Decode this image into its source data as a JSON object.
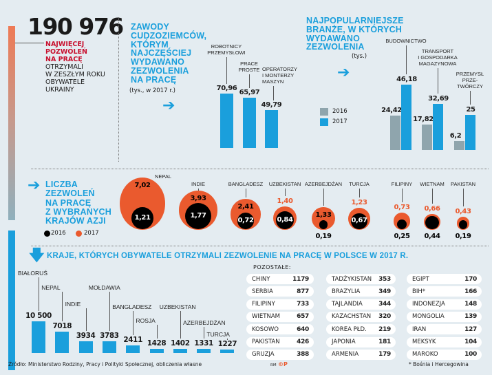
{
  "headline": {
    "number": "190 976",
    "red_text": "NAJWIĘCEJ\nPOZWOLEŃ\nNA PRACĘ",
    "black_text": "OTRZYMALI\nW ZESZŁYM ROKU\nOBYWATELE\nUKRAINY"
  },
  "colors": {
    "blue": "#1a9fdc",
    "orange": "#ea5a2e",
    "gray": "#8fa5ad",
    "red_text": "#c8102e",
    "bg": "#e4ecf1"
  },
  "professions": {
    "title": "ZAWODY\nCUDZOZIEMCÓW,\nKTÓRYM\nNAJCZĘŚCIEJ\nWYDAWANO\nZEZWOLENIA\nNA PRACĘ",
    "unit": "(tys., w 2017 r.)",
    "icon": "arrow-right-icon"
  },
  "industries": {
    "title": "NAJPOPULARNIEJSZE\nBRANŻE, W KTÓRYCH\nWYDAWANO\nZEZWOLENIA",
    "unit": "(tys.)",
    "legend": [
      "2016",
      "2017"
    ],
    "icon": "arrow-right-icon"
  },
  "asia": {
    "title": "LICZBA\nZEZWOLEŃ\nNA PRACĘ\nZ WYBRANYCH\nKRAJÓW AZJI",
    "legend": [
      "2016",
      "2017"
    ],
    "icon": "arrow-right-icon"
  },
  "countries": {
    "title": "KRAJE, KTÓRYCH OBYWATELE OTRZYMALI ZEZWOLENIE NA PRACĘ W POLSCE W 2017 R.",
    "icon": "arrow-down-icon"
  },
  "others": {
    "label": "POZOSTAŁE:",
    "columns": [
      [
        [
          "CHINY",
          "1179"
        ],
        [
          "SERBIA",
          "877"
        ],
        [
          "FILIPINY",
          "733"
        ],
        [
          "WIETNAM",
          "657"
        ],
        [
          "KOSOWO",
          "640"
        ],
        [
          "PAKISTAN",
          "426"
        ],
        [
          "GRUZJA",
          "388"
        ]
      ],
      [
        [
          "TADŻYKISTAN",
          "353"
        ],
        [
          "BRAZYLIA",
          "349"
        ],
        [
          "TAJLANDIA",
          "344"
        ],
        [
          "KAZACHSTAN",
          "320"
        ],
        [
          "KOREA PŁD.",
          "219"
        ],
        [
          "JAPONIA",
          "181"
        ],
        [
          "ARMENIA",
          "179"
        ]
      ],
      [
        [
          "EGIPT",
          "170"
        ],
        [
          "BIH*",
          "166"
        ],
        [
          "INDONEZJA",
          "148"
        ],
        [
          "MONGOLIA",
          "139"
        ],
        [
          "IRAN",
          "127"
        ],
        [
          "MEKSYK",
          "104"
        ],
        [
          "MAROKO",
          "100"
        ]
      ]
    ],
    "footnote": "* Bośnia i Hercegowina"
  },
  "footer": {
    "source": "Źródło: Ministerstwo Rodziny, Pracy i Polityki Społecznej, obliczenia własne",
    "credit": "RM",
    "logo": "©P"
  },
  "chart_data": [
    {
      "type": "bar",
      "title": "ZAWODY CUDZOZIEMCÓW, KTÓRYM NAJCZĘŚCIEJ WYDAWANO ZEZWOLENIA NA PRACĘ",
      "unit": "tys., w 2017 r.",
      "categories": [
        "ROBOTNICY\nPRZEMYSŁOWI",
        "PRACE\nPROSTE",
        "OPERATORZY\nI MONTERZY\nMASZYN"
      ],
      "values": [
        70.96,
        65.97,
        49.79
      ],
      "labels": [
        "70,96",
        "65,97",
        "49,79"
      ]
    },
    {
      "type": "bar",
      "title": "NAJPOPULARNIEJSZE BRANŻE, W KTÓRYCH WYDAWANO ZEZWOLENIA",
      "unit": "tys.",
      "categories": [
        "BUDOWNICTWO",
        "TRANSPORT\nI GOSPODARKA\nMAGAZYNOWA",
        "PRZEMYSŁ\nPRZE-\nTWÓRCZY"
      ],
      "series": [
        {
          "name": "2016",
          "values": [
            24.42,
            17.82,
            6.2
          ],
          "labels": [
            "24,42",
            "17,82",
            "6,2"
          ]
        },
        {
          "name": "2017",
          "values": [
            46.18,
            32.69,
            25
          ],
          "labels": [
            "46,18",
            "32,69",
            "25"
          ]
        }
      ],
      "legend": "left"
    },
    {
      "type": "bubble",
      "title": "LICZBA ZEZWOLEŃ NA PRACĘ Z WYBRANYCH KRAJÓW AZJI",
      "categories": [
        "NEPAL",
        "INDIE",
        "BANGLADESZ",
        "UZBEKISTAN",
        "AZERBEJDŻAN",
        "TURCJA",
        "FILIPINY",
        "WIETNAM",
        "PAKISTAN"
      ],
      "series": [
        {
          "name": "2016",
          "values": [
            1.21,
            1.77,
            0.72,
            0.84,
            0.19,
            0.67,
            0.25,
            0.44,
            0.19
          ],
          "labels": [
            "1,21",
            "1,77",
            "0,72",
            "0,84",
            "0,19",
            "0,67",
            "0,25",
            "0,44",
            "0,19"
          ]
        },
        {
          "name": "2017",
          "values": [
            7.02,
            3.93,
            2.41,
            1.4,
            1.33,
            1.23,
            0.73,
            0.66,
            0.43
          ],
          "labels": [
            "7,02",
            "3,93",
            "2,41",
            "1,40",
            "1,33",
            "1,23",
            "0,73",
            "0,66",
            "0,43"
          ]
        }
      ],
      "legend": "bottom-left"
    },
    {
      "type": "bar",
      "title": "KRAJE, KTÓRYCH OBYWATELE OTRZYMALI ZEZWOLENIE NA PRACĘ W POLSCE W 2017 R.",
      "categories": [
        "BIAŁORUŚ",
        "NEPAL",
        "INDIE",
        "MOŁDAWIA",
        "BANGLADESZ",
        "ROSJA",
        "UZBEKISTAN",
        "AZERBEJDŻAN",
        "TURCJA"
      ],
      "values": [
        10500,
        7018,
        3934,
        3783,
        2411,
        1428,
        1402,
        1331,
        1227
      ],
      "labels": [
        "10 500",
        "7018",
        "3934",
        "3783",
        "2411",
        "1428",
        "1402",
        "1331",
        "1227"
      ]
    }
  ]
}
